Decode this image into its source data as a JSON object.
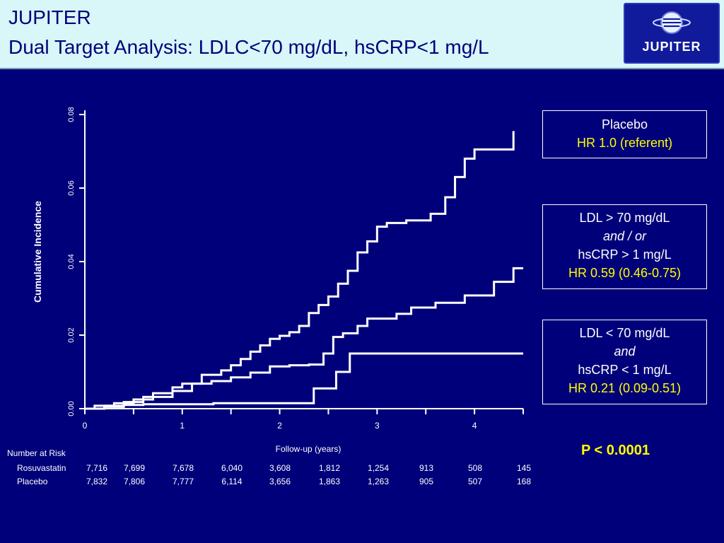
{
  "header": {
    "title_line1": "JUPITER",
    "title_line2": "Dual Target Analysis: LDLC<70 mg/dL, hsCRP<1 mg/L",
    "logo_text": "JUPITER",
    "logo_icon": "jupiter-planet-logo-icon"
  },
  "colors": {
    "background": "#00007a",
    "title_bar": "#d9f6f8",
    "title_text": "#00007a",
    "highlight": "#ffff00",
    "lines": "#ffffff"
  },
  "chart_data": {
    "type": "line",
    "title": "",
    "xlabel": "Follow-up (years)",
    "ylabel": "Cumulative Incidence",
    "xlim": [
      0,
      4.5
    ],
    "ylim": [
      0,
      0.08
    ],
    "x_ticks": [
      0,
      1,
      2,
      3,
      4
    ],
    "y_ticks": [
      "0.00",
      "0.02",
      "0.04",
      "0.06",
      "0.08"
    ],
    "step": true,
    "series": [
      {
        "name": "Placebo",
        "points": [
          [
            0,
            0
          ],
          [
            0.1,
            0.0008
          ],
          [
            0.3,
            0.0015
          ],
          [
            0.5,
            0.0025
          ],
          [
            0.7,
            0.0042
          ],
          [
            0.9,
            0.0058
          ],
          [
            1.0,
            0.0068
          ],
          [
            1.2,
            0.0092
          ],
          [
            1.4,
            0.0104
          ],
          [
            1.5,
            0.0118
          ],
          [
            1.6,
            0.0135
          ],
          [
            1.7,
            0.0155
          ],
          [
            1.8,
            0.0172
          ],
          [
            1.9,
            0.019
          ],
          [
            2.0,
            0.0198
          ],
          [
            2.1,
            0.0208
          ],
          [
            2.2,
            0.0225
          ],
          [
            2.3,
            0.026
          ],
          [
            2.4,
            0.0282
          ],
          [
            2.5,
            0.0305
          ],
          [
            2.6,
            0.034
          ],
          [
            2.7,
            0.0375
          ],
          [
            2.8,
            0.0425
          ],
          [
            2.9,
            0.0455
          ],
          [
            3.0,
            0.0495
          ],
          [
            3.1,
            0.0505
          ],
          [
            3.3,
            0.0512
          ],
          [
            3.55,
            0.053
          ],
          [
            3.7,
            0.0575
          ],
          [
            3.8,
            0.063
          ],
          [
            3.9,
            0.068
          ],
          [
            4.0,
            0.0705
          ],
          [
            4.2,
            0.0705
          ],
          [
            4.4,
            0.0755
          ]
        ]
      },
      {
        "name": "LDL > 70 mg/dL and / or hsCRP > 1 mg/L",
        "points": [
          [
            0,
            0
          ],
          [
            0.2,
            0.0008
          ],
          [
            0.4,
            0.0018
          ],
          [
            0.6,
            0.0032
          ],
          [
            0.9,
            0.0048
          ],
          [
            1.1,
            0.0068
          ],
          [
            1.3,
            0.0075
          ],
          [
            1.5,
            0.0085
          ],
          [
            1.7,
            0.0098
          ],
          [
            1.9,
            0.0115
          ],
          [
            2.1,
            0.0118
          ],
          [
            2.3,
            0.012
          ],
          [
            2.45,
            0.015
          ],
          [
            2.55,
            0.0195
          ],
          [
            2.65,
            0.0205
          ],
          [
            2.8,
            0.0225
          ],
          [
            2.9,
            0.0245
          ],
          [
            3.05,
            0.0245
          ],
          [
            3.2,
            0.0258
          ],
          [
            3.35,
            0.0275
          ],
          [
            3.6,
            0.0288
          ],
          [
            3.9,
            0.0308
          ],
          [
            4.2,
            0.0345
          ],
          [
            4.4,
            0.0382
          ],
          [
            4.5,
            0.0382
          ]
        ]
      },
      {
        "name": "LDL < 70 mg/dL and hsCRP < 1 mg/L",
        "points": [
          [
            0,
            0
          ],
          [
            0.2,
            0.0005
          ],
          [
            0.4,
            0.001
          ],
          [
            0.6,
            0.0012
          ],
          [
            1.3,
            0.0012
          ],
          [
            1.32,
            0.0015
          ],
          [
            2.35,
            0.0015
          ],
          [
            2.35,
            0.0055
          ],
          [
            2.58,
            0.0055
          ],
          [
            2.58,
            0.01
          ],
          [
            2.72,
            0.01
          ],
          [
            2.72,
            0.015
          ],
          [
            4.5,
            0.015
          ]
        ]
      }
    ]
  },
  "legend": {
    "placebo": {
      "line1": "Placebo",
      "line2": "HR 1.0 (referent)"
    },
    "ldl_high": {
      "line1": "LDL > 70 mg/dL",
      "line2": "and / or",
      "line3": "hsCRP > 1 mg/L",
      "line4": "HR 0.59 (0.46-0.75)"
    },
    "ldl_low": {
      "line1": "LDL < 70 mg/dL",
      "line2": "and",
      "line3": "hsCRP < 1 mg/L",
      "line4": "HR 0.21 (0.09-0.51)"
    }
  },
  "p_value": "P < 0.0001",
  "risk_table": {
    "title": "Number at Risk",
    "rows": [
      {
        "label": "Rosuvastatin",
        "values": [
          "7,716",
          "7,699",
          "7,678",
          "6,040",
          "3,608",
          "1,812",
          "1,254",
          "913",
          "508",
          "145"
        ]
      },
      {
        "label": "Placebo",
        "values": [
          "7,832",
          "7,806",
          "7,777",
          "6,114",
          "3,656",
          "1,863",
          "1,263",
          "905",
          "507",
          "168"
        ]
      }
    ]
  }
}
